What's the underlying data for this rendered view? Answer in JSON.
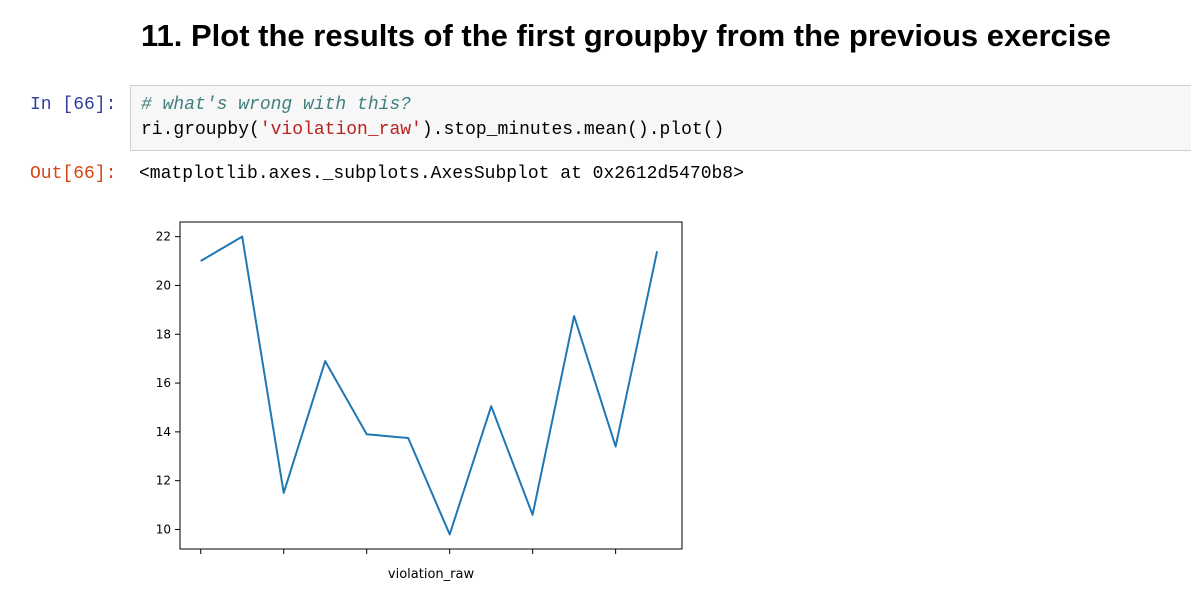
{
  "heading": "11. Plot the results of the first groupby from the previous exercise",
  "input_cell": {
    "prompt": "In [66]:",
    "code_comment": "# what's wrong with this?",
    "code_before": "ri.groupby(",
    "code_string": "'violation_raw'",
    "code_after": ").stop_minutes.mean().plot()"
  },
  "output_cell": {
    "prompt": "Out[66]:",
    "text": "<matplotlib.axes._subplots.AxesSubplot at 0x2612d5470b8>"
  },
  "colors": {
    "line": "#1f77b4",
    "in_prompt": "#303f9f",
    "out_prompt": "#d84315",
    "comment": "#408080",
    "string": "#ba2121"
  },
  "chart_data": {
    "type": "line",
    "xlabel": "violation_raw",
    "ylabel": "",
    "x": [
      0,
      1,
      2,
      3,
      4,
      5,
      6,
      7,
      8,
      9,
      10,
      11
    ],
    "values": [
      21.0,
      22.0,
      11.5,
      16.9,
      13.9,
      13.75,
      9.8,
      15.05,
      10.6,
      18.75,
      13.4,
      21.4
    ],
    "yticks": [
      10,
      12,
      14,
      16,
      18,
      20,
      22
    ],
    "ylim": [
      9.2,
      22.6
    ],
    "grid": false,
    "legend": "none"
  }
}
